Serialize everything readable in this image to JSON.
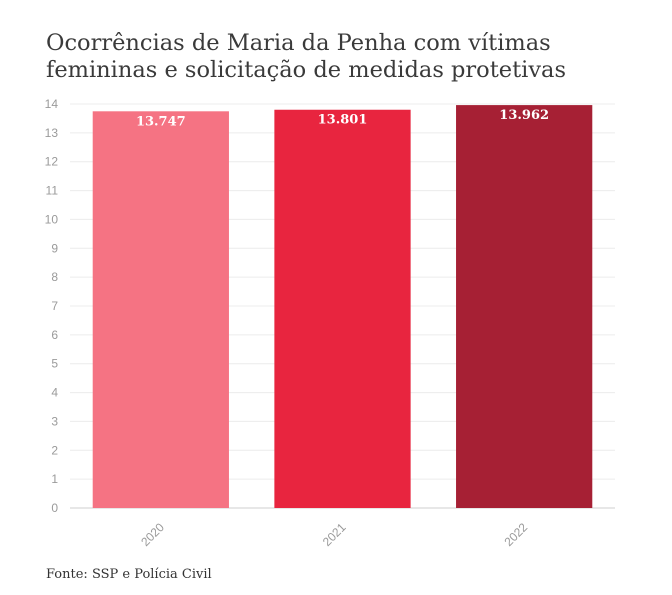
{
  "title_lines": [
    "Ocorrências de Maria da Penha com vítimas",
    "femininas e solicitação de medidas protetivas"
  ],
  "source": "Fonte: SSP e Polícia Civil",
  "chart_data": {
    "type": "bar",
    "title": "Ocorrências de Maria da Penha com vítimas femininas e solicitação de medidas protetivas",
    "categories": [
      "2020",
      "2021",
      "2022"
    ],
    "values": [
      13.747,
      13.801,
      13.962
    ],
    "data_labels": [
      "13.747",
      "13.801",
      "13.962"
    ],
    "bar_colors": [
      "#f57383",
      "#e8253f",
      "#a62034"
    ],
    "ylim": [
      0,
      14
    ],
    "yticks": [
      "0",
      "1",
      "2",
      "3",
      "4",
      "5",
      "6",
      "7",
      "8",
      "9",
      "10",
      "11",
      "12",
      "13",
      "14"
    ],
    "grid": true,
    "legend": "none"
  }
}
